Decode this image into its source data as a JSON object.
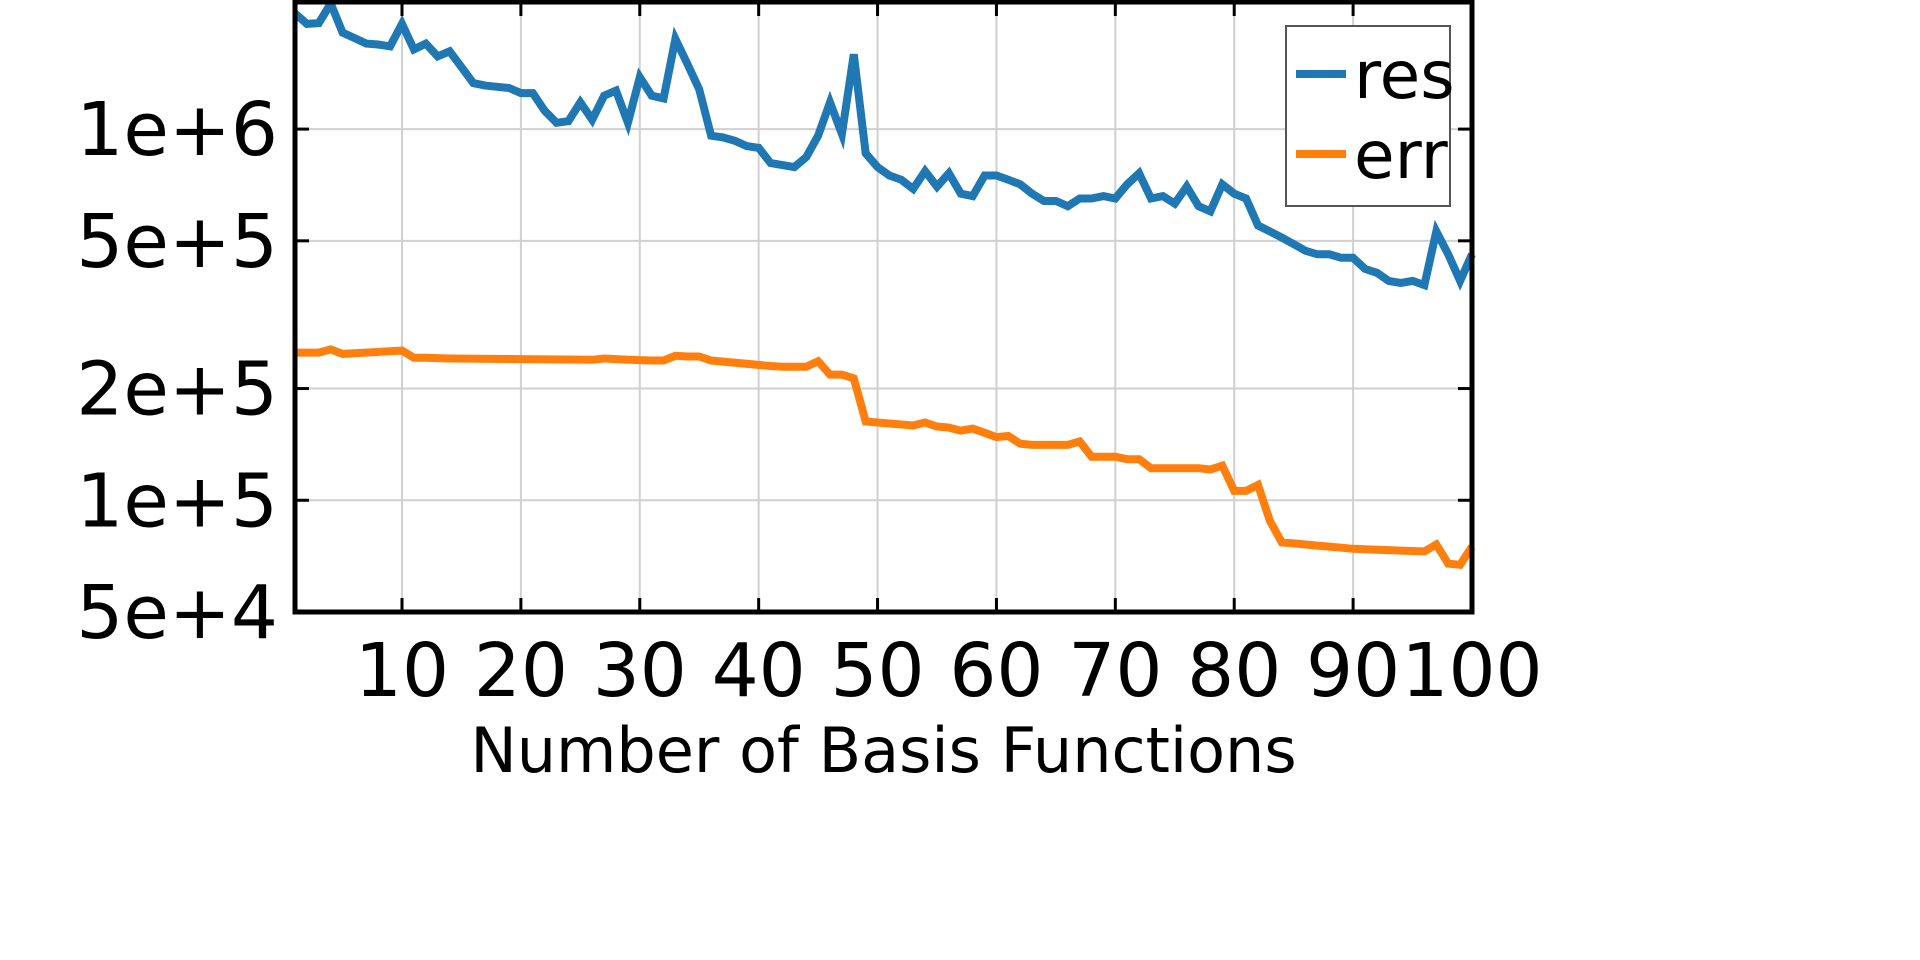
{
  "chart_data": {
    "type": "line",
    "xlabel": "Number of Basis Functions",
    "ylabel": "",
    "yscale": "log",
    "xlim": [
      1,
      100
    ],
    "ylim": [
      50000,
      2200000
    ],
    "grid": true,
    "legend": "top-right",
    "xticks": [
      10,
      20,
      30,
      40,
      50,
      60,
      70,
      80,
      90,
      100
    ],
    "xtick_labels": [
      "10",
      "20",
      "30",
      "40",
      "50",
      "60",
      "70",
      "80",
      "90",
      "100"
    ],
    "yticks": [
      50000,
      100000,
      200000,
      500000,
      1000000
    ],
    "ytick_labels": [
      "5e+4",
      "1e+5",
      "2e+5",
      "5e+5",
      "1e+6"
    ],
    "series": [
      {
        "name": "res",
        "color": "#1f77b4",
        "x": [
          1,
          2,
          3,
          4,
          5,
          6,
          7,
          8,
          9,
          10,
          11,
          12,
          13,
          14,
          15,
          16,
          17,
          18,
          19,
          20,
          21,
          22,
          23,
          24,
          25,
          26,
          27,
          28,
          29,
          30,
          31,
          32,
          33,
          34,
          35,
          36,
          37,
          38,
          39,
          40,
          41,
          42,
          43,
          44,
          45,
          46,
          47,
          48,
          49,
          50,
          51,
          52,
          53,
          54,
          55,
          56,
          57,
          58,
          59,
          60,
          61,
          62,
          63,
          64,
          65,
          66,
          67,
          68,
          69,
          70,
          71,
          72,
          73,
          74,
          75,
          76,
          77,
          78,
          79,
          80,
          81,
          82,
          83,
          84,
          85,
          86,
          87,
          88,
          89,
          90,
          91,
          92,
          93,
          94,
          95,
          96,
          97,
          98,
          99,
          100
        ],
        "y": [
          2050000,
          1920000,
          1930000,
          2180000,
          1820000,
          1760000,
          1700000,
          1690000,
          1670000,
          1920000,
          1640000,
          1700000,
          1570000,
          1620000,
          1470000,
          1330000,
          1310000,
          1300000,
          1290000,
          1250000,
          1250000,
          1120000,
          1040000,
          1050000,
          1180000,
          1060000,
          1230000,
          1270000,
          1040000,
          1380000,
          1230000,
          1210000,
          1750000,
          1500000,
          1280000,
          960000,
          950000,
          930000,
          900000,
          890000,
          810000,
          800000,
          790000,
          840000,
          960000,
          1180000,
          970000,
          1590000,
          860000,
          790000,
          750000,
          730000,
          690000,
          770000,
          700000,
          760000,
          670000,
          660000,
          750000,
          750000,
          730000,
          710000,
          670000,
          640000,
          640000,
          620000,
          650000,
          650000,
          660000,
          650000,
          710000,
          760000,
          650000,
          660000,
          630000,
          700000,
          620000,
          600000,
          710000,
          670000,
          650000,
          550000,
          530000,
          510000,
          490000,
          470000,
          460000,
          460000,
          450000,
          450000,
          420000,
          410000,
          390000,
          385000,
          390000,
          380000,
          530000,
          460000,
          390000,
          460000
        ]
      },
      {
        "name": "err",
        "color": "#ff7f0e",
        "x": [
          1,
          2,
          3,
          4,
          5,
          10,
          11,
          12,
          14,
          20,
          26,
          27,
          28,
          29,
          31,
          32,
          33,
          34,
          35,
          36,
          41,
          42,
          43,
          44,
          45,
          46,
          47,
          48,
          49,
          50,
          51,
          52,
          53,
          54,
          55,
          56,
          57,
          58,
          59,
          60,
          61,
          62,
          63,
          64,
          65,
          66,
          67,
          68,
          69,
          70,
          71,
          72,
          73,
          74,
          75,
          76,
          77,
          78,
          79,
          80,
          81,
          82,
          83,
          84,
          85,
          86,
          87,
          88,
          89,
          90,
          91,
          92,
          93,
          94,
          95,
          96,
          97,
          98,
          99,
          100
        ],
        "y": [
          250000,
          250000,
          250000,
          255000,
          248000,
          253000,
          242000,
          242000,
          241000,
          240000,
          239000,
          241000,
          240000,
          239000,
          238000,
          238000,
          245000,
          244000,
          244000,
          238000,
          230000,
          229000,
          229000,
          229000,
          237000,
          218000,
          218000,
          213000,
          163000,
          162000,
          161000,
          160000,
          159000,
          162000,
          158000,
          157000,
          154000,
          156000,
          152000,
          148000,
          149000,
          142000,
          141000,
          141000,
          141000,
          141000,
          144000,
          131000,
          131000,
          131000,
          129000,
          129000,
          122000,
          122000,
          122000,
          122000,
          122000,
          121000,
          124000,
          106000,
          106000,
          110000,
          88000,
          77000,
          76500,
          76000,
          75500,
          75000,
          74500,
          74000,
          73800,
          73600,
          73400,
          73200,
          73000,
          72800,
          76000,
          67500,
          67000,
          75000
        ]
      }
    ]
  }
}
